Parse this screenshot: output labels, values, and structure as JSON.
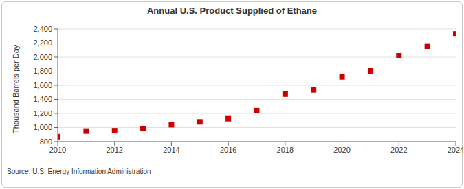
{
  "chart_data": {
    "type": "scatter",
    "title": "Annual U.S. Product Supplied of Ethane",
    "y_label": "Thousand Barrels per Day",
    "source": "Source: U.S. Energy Information Administration",
    "x": [
      2010,
      2011,
      2012,
      2013,
      2014,
      2015,
      2016,
      2017,
      2018,
      2019,
      2020,
      2021,
      2022,
      2023,
      2024
    ],
    "values": [
      870,
      950,
      955,
      985,
      1040,
      1080,
      1125,
      1240,
      1475,
      1535,
      1720,
      1805,
      2020,
      2150,
      2330
    ],
    "color": "#cc0000",
    "marker": "square",
    "xlim": [
      2010,
      2024
    ],
    "xticks": [
      2010,
      2012,
      2014,
      2016,
      2018,
      2020,
      2022,
      2024
    ],
    "ylim": [
      800,
      2400
    ],
    "yticks": [
      800,
      {
        "value": 1000,
        "label": "1,000"
      },
      {
        "value": 1200,
        "label": "1,200"
      },
      {
        "value": 1400,
        "label": "1,400"
      },
      {
        "value": 1600,
        "label": "1,600"
      },
      {
        "value": 1800,
        "label": "1,800"
      },
      {
        "value": 2000,
        "label": "2,000"
      },
      {
        "value": 2200,
        "label": "2,200"
      },
      {
        "value": 2400,
        "label": "2,400"
      }
    ],
    "grid": true
  }
}
